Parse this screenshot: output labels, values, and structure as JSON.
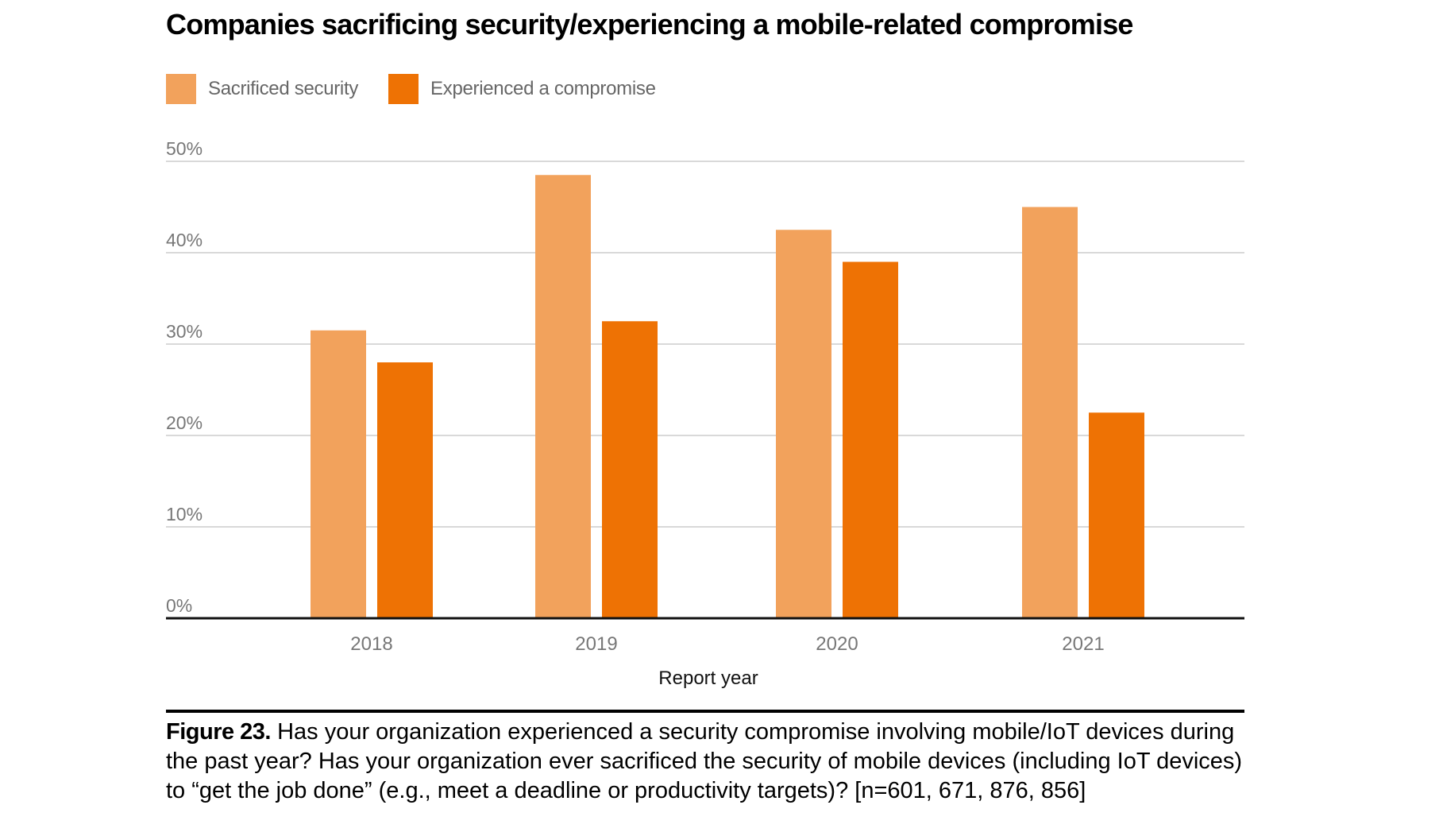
{
  "title": "Companies sacrificing security/experiencing a mobile-related compromise",
  "legend": [
    {
      "label": "Sacrificed security",
      "color": "#F2A25C"
    },
    {
      "label": "Experienced a compromise",
      "color": "#EE7204"
    }
  ],
  "caption": {
    "figure_label": "Figure 23.",
    "text": "Has your organization experienced a security compromise involving mobile/IoT devices during the past year? Has your organization ever sacrificed the security of mobile devices (including IoT devices) to “get the job done” (e.g., meet a deadline or productivity targets)? [n=601, 671, 876, 856]"
  },
  "chart_data": {
    "type": "bar",
    "title": "Companies sacrificing security/experiencing a mobile-related compromise",
    "xlabel": "Report year",
    "ylabel": "",
    "categories": [
      "2018",
      "2019",
      "2020",
      "2021"
    ],
    "series": [
      {
        "name": "Sacrificed security",
        "values": [
          31.5,
          48.5,
          42.5,
          45
        ],
        "color": "#F2A25C"
      },
      {
        "name": "Experienced a compromise",
        "values": [
          28,
          32.5,
          39,
          22.5
        ],
        "color": "#EE7204"
      }
    ],
    "ylim": [
      0,
      50
    ],
    "yticks": [
      0,
      10,
      20,
      30,
      40,
      50
    ],
    "ytick_labels": [
      "0%",
      "10%",
      "20%",
      "30%",
      "40%",
      "50%"
    ],
    "grid": true,
    "legend_position": "top-left"
  }
}
